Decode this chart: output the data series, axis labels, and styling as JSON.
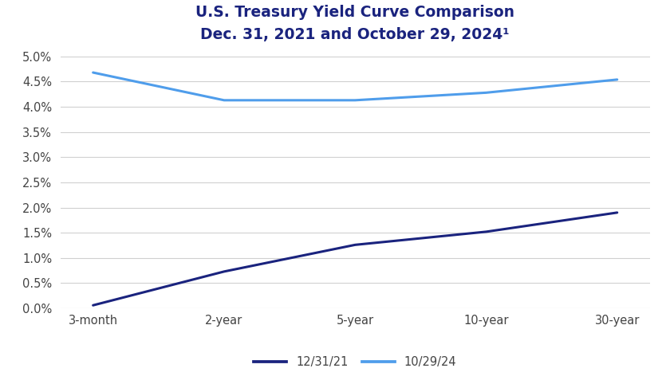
{
  "title_line1": "U.S. Treasury Yield Curve Comparison",
  "title_line2": "Dec. 31, 2021 and October 29, 2024¹",
  "categories": [
    "3-month",
    "2-year",
    "5-year",
    "10-year",
    "30-year"
  ],
  "series_2021": [
    0.06,
    0.73,
    1.26,
    1.52,
    1.9
  ],
  "series_2024": [
    4.68,
    4.13,
    4.13,
    4.28,
    4.54
  ],
  "color_2021": "#1a237e",
  "color_2024": "#4f9deb",
  "ylim": [
    0.0,
    5.0
  ],
  "yticks": [
    0.0,
    0.5,
    1.0,
    1.5,
    2.0,
    2.5,
    3.0,
    3.5,
    4.0,
    4.5,
    5.0
  ],
  "legend_2021": "12/31/21",
  "legend_2024": "10/29/24",
  "title_color": "#1a237e",
  "title_fontsize": 13.5,
  "line_width": 2.2,
  "background_color": "#ffffff",
  "grid_color": "#d0d0d0",
  "tick_label_color": "#444444",
  "tick_fontsize": 10.5
}
